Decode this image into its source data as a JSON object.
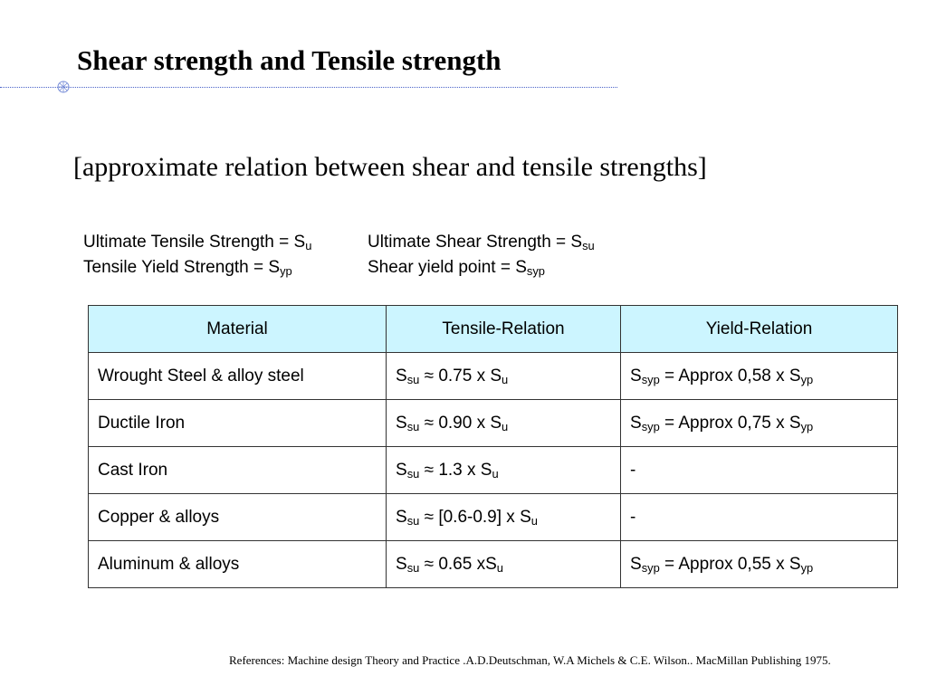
{
  "title": "Shear strength and Tensile strength",
  "subtitle": "[approximate relation between shear and tensile strengths]",
  "definitions": {
    "uts": {
      "label": "Ultimate Tensile Strength = S",
      "sub": "u"
    },
    "uss": {
      "label": "Ultimate Shear Strength = S",
      "sub": "su"
    },
    "tys": {
      "label": "Tensile Yield Strength = S",
      "sub": "yp"
    },
    "syp": {
      "label": "Shear yield point = S",
      "sub": "syp"
    }
  },
  "table": {
    "headers": [
      "Material",
      "Tensile-Relation",
      "Yield-Relation"
    ],
    "rows": [
      {
        "material": "Wrought Steel & alloy steel",
        "tensile": {
          "s": "S",
          "ssub": "su",
          "mid": " ≈ 0.75 x S",
          "esub": "u"
        },
        "yield": {
          "s": "S",
          "ssub": "syp",
          "mid": " = Approx 0,58 x S",
          "esub": "yp"
        }
      },
      {
        "material": "Ductile Iron",
        "tensile": {
          "s": "S",
          "ssub": "su",
          "mid": " ≈ 0.90 x S",
          "esub": "u"
        },
        "yield": {
          "s": "S",
          "ssub": "syp",
          "mid": " = Approx 0,75 x S",
          "esub": "yp"
        }
      },
      {
        "material": "Cast Iron",
        "tensile": {
          "s": "S",
          "ssub": "su",
          "mid": " ≈ 1.3 x S",
          "esub": "u"
        },
        "yield": {
          "text": "-"
        }
      },
      {
        "material": "Copper & alloys",
        "tensile": {
          "s": "S",
          "ssub": "su",
          "mid": " ≈ [0.6-0.9] x S",
          "esub": "u"
        },
        "yield": {
          "text": "-"
        }
      },
      {
        "material": "Aluminum & alloys",
        "tensile": {
          "s": "S",
          "ssub": "su",
          "mid": " ≈ 0.65 xS",
          "esub": "u"
        },
        "yield": {
          "s": "S",
          "ssub": "syp",
          "mid": " = Approx 0,55 x S",
          "esub": "yp"
        }
      }
    ]
  },
  "reference": "References: Machine design Theory and Practice .A.D.Deutschman, W.A Michels & C.E. Wilson.. MacMillan Publishing 1975."
}
